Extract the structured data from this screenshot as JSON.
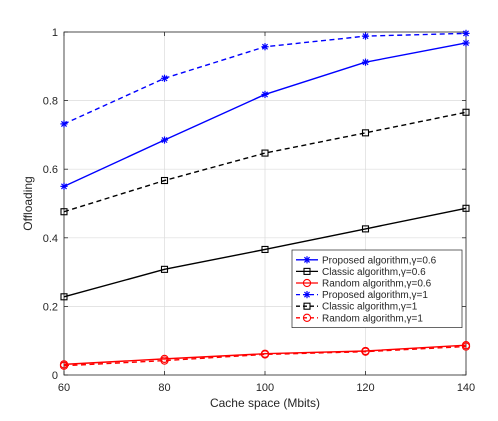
{
  "chart_data": {
    "type": "line",
    "xlabel": "Cache space (Mbits)",
    "ylabel": "Offloading",
    "x": [
      60,
      80,
      100,
      120,
      140
    ],
    "xlim": [
      60,
      140
    ],
    "ylim": [
      0,
      1
    ],
    "xticks": [
      "60",
      "80",
      "100",
      "120",
      "140"
    ],
    "yticks": [
      "0",
      "0.2",
      "0.4",
      "0.6",
      "0.8",
      "1"
    ],
    "grid": true,
    "legend_position": "lower-right",
    "series": [
      {
        "name": "Proposed algorithm,γ=0.6",
        "color": "#0000ff",
        "dash": "solid",
        "marker": "star",
        "values": [
          0.55,
          0.685,
          0.818,
          0.912,
          0.968
        ]
      },
      {
        "name": "Classic algorithm,γ=0.6",
        "color": "#000000",
        "dash": "solid",
        "marker": "square",
        "values": [
          0.228,
          0.308,
          0.366,
          0.426,
          0.486
        ]
      },
      {
        "name": "Random algorithm,γ=0.6",
        "color": "#ff0000",
        "dash": "solid",
        "marker": "circle",
        "values": [
          0.031,
          0.047,
          0.062,
          0.07,
          0.087
        ]
      },
      {
        "name": "Proposed algorithm,γ=1",
        "color": "#0000ff",
        "dash": "dashed",
        "marker": "star",
        "values": [
          0.732,
          0.865,
          0.957,
          0.988,
          0.996
        ]
      },
      {
        "name": "Classic algorithm,γ=1",
        "color": "#000000",
        "dash": "dashed",
        "marker": "square",
        "values": [
          0.476,
          0.567,
          0.647,
          0.706,
          0.766
        ]
      },
      {
        "name": "Random algorithm,γ=1",
        "color": "#ff0000",
        "dash": "dashed",
        "marker": "circle",
        "values": [
          0.027,
          0.042,
          0.06,
          0.068,
          0.083
        ]
      }
    ]
  }
}
